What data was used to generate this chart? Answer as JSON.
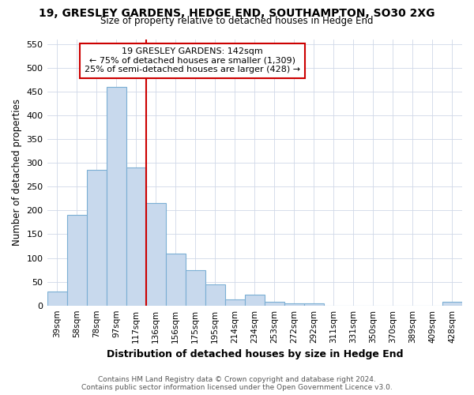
{
  "title": "19, GRESLEY GARDENS, HEDGE END, SOUTHAMPTON, SO30 2XG",
  "subtitle": "Size of property relative to detached houses in Hedge End",
  "xlabel": "Distribution of detached houses by size in Hedge End",
  "ylabel": "Number of detached properties",
  "categories": [
    "39sqm",
    "58sqm",
    "78sqm",
    "97sqm",
    "117sqm",
    "136sqm",
    "156sqm",
    "175sqm",
    "195sqm",
    "214sqm",
    "234sqm",
    "253sqm",
    "272sqm",
    "292sqm",
    "311sqm",
    "331sqm",
    "350sqm",
    "370sqm",
    "389sqm",
    "409sqm",
    "428sqm"
  ],
  "values": [
    30,
    190,
    285,
    460,
    290,
    215,
    110,
    75,
    45,
    13,
    22,
    8,
    5,
    5,
    0,
    0,
    0,
    0,
    0,
    0,
    8
  ],
  "bar_color": "#c8d9ed",
  "bar_edge_color": "#7bafd4",
  "property_label": "19 GRESLEY GARDENS: 142sqm",
  "annotation_line1": "← 75% of detached houses are smaller (1,309)",
  "annotation_line2": "25% of semi-detached houses are larger (428) →",
  "vline_category_index": 5,
  "vline_color": "#cc0000",
  "annotation_box_color": "#cc0000",
  "ylim": [
    0,
    560
  ],
  "yticks": [
    0,
    50,
    100,
    150,
    200,
    250,
    300,
    350,
    400,
    450,
    500,
    550
  ],
  "footer_line1": "Contains HM Land Registry data © Crown copyright and database right 2024.",
  "footer_line2": "Contains public sector information licensed under the Open Government Licence v3.0.",
  "bg_color": "#ffffff",
  "grid_color": "#d0d8e8"
}
